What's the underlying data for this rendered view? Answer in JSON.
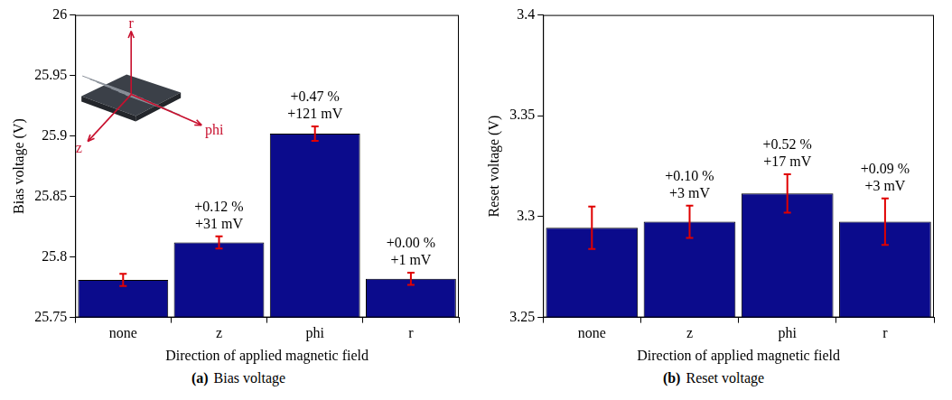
{
  "chart_data": [
    {
      "type": "bar",
      "panel": "(a)",
      "caption": "Bias voltage",
      "x_label": "Direction of applied magnetic field",
      "y_label": "Bias voltage (V)",
      "categories": [
        "none",
        "z",
        "phi",
        "r"
      ],
      "values": [
        25.781,
        25.812,
        25.902,
        25.782
      ],
      "errors": [
        0.005,
        0.005,
        0.006,
        0.005
      ],
      "color": "#0b0b8c",
      "ylim": [
        25.75,
        26
      ],
      "yticks": [
        25.75,
        25.8,
        25.85,
        25.9,
        25.95,
        26
      ],
      "grid": false,
      "annotations": [
        {
          "category": "z",
          "lines": [
            "+0.12 %",
            "+31 mV"
          ]
        },
        {
          "category": "phi",
          "lines": [
            "+0.47 %",
            "+121 mV"
          ]
        },
        {
          "category": "r",
          "lines": [
            "+0.00 %",
            "+1 mV"
          ]
        }
      ],
      "inset": {
        "axes": [
          "r",
          "z",
          "phi"
        ]
      }
    },
    {
      "type": "bar",
      "panel": "(b)",
      "caption": "Reset voltage",
      "x_label": "Direction of applied magnetic field",
      "y_label": "Reset voltage (V)",
      "categories": [
        "none",
        "z",
        "phi",
        "r"
      ],
      "values": [
        3.2945,
        3.2975,
        3.3115,
        3.2975
      ],
      "errors": [
        0.0105,
        0.008,
        0.0095,
        0.0115
      ],
      "color": "#0b0b8c",
      "ylim": [
        3.25,
        3.4
      ],
      "yticks": [
        3.25,
        3.3,
        3.35,
        3.4
      ],
      "grid": false,
      "annotations": [
        {
          "category": "z",
          "lines": [
            "+0.10 %",
            "+3 mV"
          ]
        },
        {
          "category": "phi",
          "lines": [
            "+0.52 %",
            "+17 mV"
          ]
        },
        {
          "category": "r",
          "lines": [
            "+0.09 %",
            "+3 mV"
          ]
        }
      ]
    }
  ]
}
